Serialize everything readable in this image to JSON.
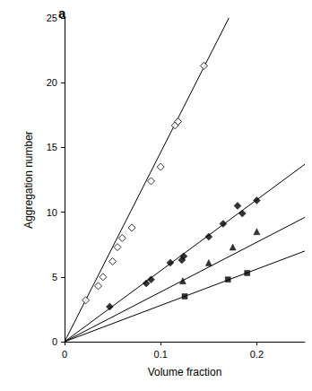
{
  "chart_data": {
    "type": "scatter",
    "annotation": "a",
    "x_label": "Volume fraction",
    "y_label": "Aggregation number",
    "xlim": [
      0,
      0.25
    ],
    "xticks": [
      0,
      0.1,
      0.2
    ],
    "ylim": [
      0,
      25
    ],
    "yticks": [
      0,
      5,
      10,
      15,
      20,
      25
    ],
    "grid": false,
    "series": [
      {
        "type": "scatter",
        "marker": "diamond-open",
        "color": "#000000",
        "x": [
          0.022,
          0.035,
          0.04,
          0.05,
          0.055,
          0.06,
          0.07,
          0.09,
          0.1,
          0.115,
          0.118,
          0.145
        ],
        "values": [
          3.2,
          4.3,
          5.0,
          6.2,
          7.3,
          8.0,
          8.8,
          12.4,
          13.5,
          16.7,
          17.0,
          21.3
        ]
      },
      {
        "type": "scatter",
        "marker": "diamond",
        "color": "#000000",
        "x": [
          0.047,
          0.085,
          0.09,
          0.11,
          0.122,
          0.124,
          0.15,
          0.165,
          0.18,
          0.185,
          0.2
        ],
        "values": [
          2.7,
          4.5,
          4.8,
          6.1,
          6.3,
          6.6,
          8.1,
          9.1,
          10.5,
          9.9,
          10.9
        ]
      },
      {
        "type": "scatter",
        "marker": "triangle",
        "color": "#000000",
        "x": [
          0.123,
          0.15,
          0.175,
          0.2
        ],
        "values": [
          4.7,
          6.1,
          7.3,
          8.5
        ]
      },
      {
        "type": "scatter",
        "marker": "square",
        "color": "#000000",
        "x": [
          0.125,
          0.17,
          0.19
        ],
        "values": [
          3.5,
          4.8,
          5.3
        ]
      },
      {
        "type": "line",
        "line_style": "solid",
        "color": "#000000",
        "x": [
          0,
          0.171
        ],
        "values": [
          0,
          25
        ]
      },
      {
        "type": "line",
        "line_style": "solid",
        "color": "#000000",
        "x": [
          0,
          0.25
        ],
        "values": [
          0,
          13.7
        ]
      },
      {
        "type": "line",
        "line_style": "solid",
        "color": "#000000",
        "x": [
          0,
          0.25
        ],
        "values": [
          0,
          9.6
        ]
      },
      {
        "type": "line",
        "line_style": "solid",
        "color": "#000000",
        "x": [
          0,
          0.25
        ],
        "values": [
          0,
          7.0
        ]
      }
    ]
  }
}
